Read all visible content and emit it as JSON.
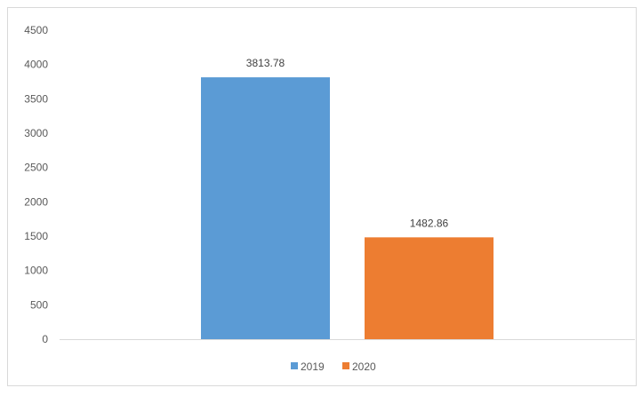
{
  "chart_data": {
    "type": "bar",
    "title": "",
    "xlabel": "",
    "ylabel": "",
    "ylim": [
      0,
      4500
    ],
    "yticks": [
      0,
      500,
      1000,
      1500,
      2000,
      2500,
      3000,
      3500,
      4000,
      4500
    ],
    "grid": false,
    "legend_position": "bottom",
    "series": [
      {
        "name": "2019",
        "values": [
          3813.78
        ],
        "color": "#5b9bd5",
        "label": "3813.78"
      },
      {
        "name": "2020",
        "values": [
          1482.86
        ],
        "color": "#ed7d31",
        "label": "1482.86"
      }
    ]
  }
}
